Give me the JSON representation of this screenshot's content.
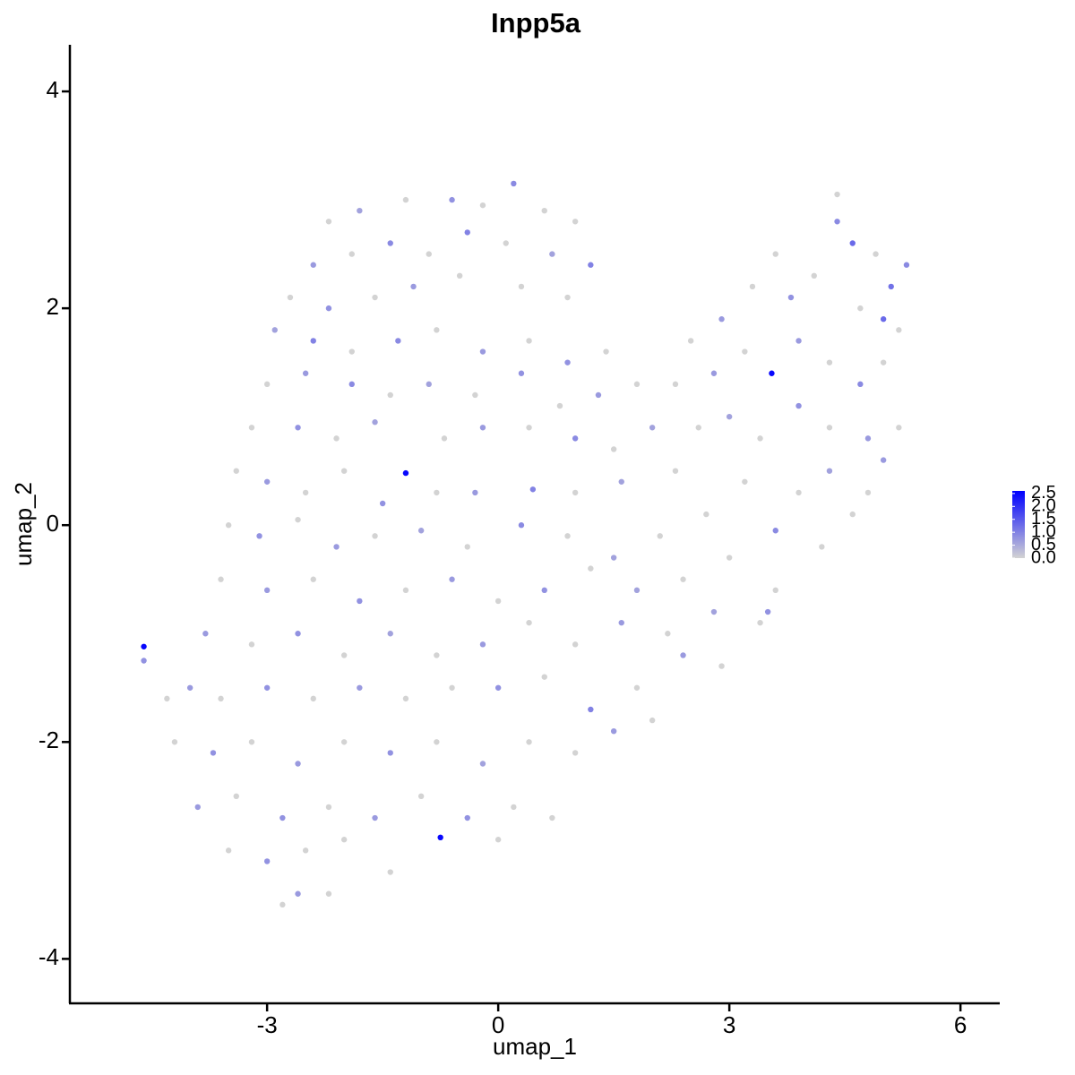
{
  "chart_data": {
    "type": "scatter",
    "title": "Inpp5a",
    "x_label": "umap_1",
    "y_label": "umap_2",
    "xlim": [
      -5.56,
      6.51
    ],
    "ylim": [
      -4.41,
      4.43
    ],
    "xticks": [
      -3,
      0,
      3,
      6
    ],
    "yticks": [
      -4,
      -2,
      0,
      2,
      4
    ],
    "colorbar": {
      "lim": [
        0,
        2.6
      ],
      "colors": [
        "#d3d3d3",
        "#0000ff"
      ],
      "ticks": [
        {
          "value": 0,
          "label": "0.0"
        },
        0.5,
        {
          "value": 1,
          "label": "1.0"
        },
        1.5,
        {
          "value": 2,
          "label": "2.0"
        },
        2.5
      ]
    },
    "x": [
      -2.2,
      -1.8,
      -1.2,
      -0.6,
      -0.2,
      0.2,
      0.6,
      1.0,
      -2.4,
      -1.9,
      -1.4,
      -0.9,
      -0.4,
      0.1,
      0.7,
      1.2,
      -2.7,
      -2.2,
      -1.6,
      -1.1,
      -0.5,
      0.3,
      0.9,
      -2.9,
      -2.4,
      -1.9,
      -1.3,
      -0.8,
      -0.2,
      0.4,
      0.9,
      1.4,
      -3.0,
      -2.5,
      -1.9,
      -1.4,
      -0.9,
      -0.3,
      0.3,
      0.8,
      1.3,
      1.8,
      -3.2,
      -2.6,
      -2.1,
      -1.6,
      -1.2,
      -0.7,
      -0.2,
      0.4,
      1.0,
      1.5,
      2.0,
      -3.4,
      -3.0,
      -2.5,
      -2.0,
      -1.5,
      -0.8,
      -0.3,
      0.45,
      1.0,
      1.6,
      2.3,
      -3.5,
      -3.1,
      -2.6,
      -2.1,
      -1.6,
      -1.0,
      -0.4,
      0.3,
      0.9,
      1.5,
      2.1,
      2.7,
      -3.6,
      -3.0,
      -2.4,
      -1.8,
      -1.2,
      -0.6,
      0.0,
      0.6,
      1.2,
      1.8,
      2.4,
      3.0,
      -3.8,
      -3.2,
      -2.6,
      -2.0,
      -1.4,
      -0.8,
      -0.2,
      0.4,
      1.0,
      1.6,
      2.2,
      2.8,
      3.4,
      -4.6,
      -4.6,
      -4.3,
      -4.0,
      -3.6,
      -3.0,
      -2.4,
      -1.8,
      -1.2,
      -0.6,
      0.0,
      0.6,
      1.2,
      1.8,
      2.4,
      2.9,
      -4.2,
      -3.7,
      -3.2,
      -2.6,
      -2.0,
      -1.4,
      -0.8,
      -0.2,
      0.4,
      1.0,
      1.5,
      2.0,
      -3.9,
      -3.4,
      -2.8,
      -2.2,
      -1.6,
      -1.0,
      -0.4,
      0.2,
      0.7,
      -3.5,
      -3.0,
      -2.5,
      -2.0,
      -1.4,
      -0.75,
      0.0,
      -2.6,
      -2.2,
      -2.8,
      2.5,
      2.9,
      3.3,
      3.6,
      3.8,
      4.1,
      4.4,
      4.6,
      4.9,
      5.1,
      5.3,
      4.4,
      4.7,
      5.0,
      5.2,
      2.3,
      2.8,
      3.2,
      3.55,
      3.9,
      4.3,
      4.7,
      5.0,
      2.6,
      3.0,
      3.4,
      3.9,
      4.3,
      4.8,
      5.2,
      3.2,
      3.6,
      3.9,
      4.3,
      4.8,
      5.0,
      3.6,
      3.5,
      4.2,
      4.6
    ],
    "y": [
      2.8,
      2.9,
      3.0,
      3.0,
      2.95,
      3.15,
      2.9,
      2.8,
      2.4,
      2.5,
      2.6,
      2.5,
      2.7,
      2.6,
      2.5,
      2.4,
      2.1,
      2.0,
      2.1,
      2.2,
      2.3,
      2.2,
      2.1,
      1.8,
      1.7,
      1.6,
      1.7,
      1.8,
      1.6,
      1.7,
      1.5,
      1.6,
      1.3,
      1.4,
      1.3,
      1.2,
      1.3,
      1.2,
      1.4,
      1.1,
      1.2,
      1.3,
      0.9,
      0.9,
      0.8,
      0.95,
      0.48,
      0.8,
      0.9,
      0.9,
      0.8,
      0.7,
      0.9,
      0.5,
      0.4,
      0.3,
      0.5,
      0.2,
      0.3,
      0.3,
      0.33,
      0.3,
      0.4,
      0.5,
      0,
      -0.1,
      0.05,
      -0.2,
      -0.1,
      -0.05,
      -0.2,
      0,
      -0.1,
      -0.3,
      -0.1,
      0.1,
      -0.5,
      -0.6,
      -0.5,
      -0.7,
      -0.6,
      -0.5,
      -0.7,
      -0.6,
      -0.4,
      -0.6,
      -0.5,
      -0.3,
      -1.0,
      -1.1,
      -1.0,
      -1.2,
      -1.0,
      -1.2,
      -1.1,
      -0.9,
      -1.1,
      -0.9,
      -1.0,
      -0.8,
      -0.9,
      -1.12,
      -1.25,
      -1.6,
      -1.5,
      -1.6,
      -1.5,
      -1.6,
      -1.5,
      -1.6,
      -1.5,
      -1.5,
      -1.4,
      -1.7,
      -1.5,
      -1.2,
      -1.3,
      -2.0,
      -2.1,
      -2.0,
      -2.2,
      -2.0,
      -2.1,
      -2.0,
      -2.2,
      -2.0,
      -2.1,
      -1.9,
      -1.8,
      -2.6,
      -2.5,
      -2.7,
      -2.6,
      -2.7,
      -2.5,
      -2.7,
      -2.6,
      -2.7,
      -3.0,
      -3.1,
      -3.0,
      -2.9,
      -3.2,
      -2.88,
      -2.9,
      -3.4,
      -3.4,
      -3.5,
      1.7,
      1.9,
      2.2,
      2.5,
      2.1,
      2.3,
      2.8,
      2.6,
      2.5,
      2.2,
      2.4,
      3.05,
      2.0,
      1.9,
      1.8,
      1.3,
      1.4,
      1.6,
      1.4,
      1.7,
      1.5,
      1.3,
      1.5,
      0.9,
      1.0,
      0.8,
      1.1,
      0.9,
      0.8,
      0.9,
      0.4,
      -0.05,
      0.3,
      0.5,
      0.3,
      0.6,
      -0.6,
      -0.8,
      -0.2,
      0.1
    ],
    "values": [
      0,
      0.6,
      0,
      0.8,
      0,
      0.9,
      0,
      0,
      0.7,
      0,
      0.9,
      0,
      1.0,
      0,
      0.6,
      1.0,
      0,
      0.8,
      0,
      0.7,
      0,
      0,
      0,
      0.6,
      1.0,
      0,
      0.9,
      0,
      0.7,
      0,
      0.8,
      0,
      0,
      0.7,
      0.9,
      0,
      0.6,
      0,
      0.8,
      0,
      0.7,
      0,
      0,
      0.8,
      0,
      0.6,
      2.5,
      0,
      0.7,
      0,
      0.9,
      0,
      0.6,
      0,
      0.7,
      0,
      0,
      0.8,
      0,
      0.7,
      1.0,
      0,
      0.6,
      0,
      0,
      0.8,
      0,
      0.7,
      0,
      0.6,
      0,
      0.9,
      0,
      0.6,
      0,
      0,
      0,
      0.7,
      0,
      0.8,
      0,
      0.7,
      0,
      0.8,
      0,
      0.6,
      0,
      0,
      0.7,
      0,
      0.8,
      0,
      0.6,
      0,
      0.7,
      0,
      0,
      0.7,
      0,
      0.6,
      0,
      2.5,
      0.8,
      0,
      0.7,
      0,
      0.8,
      0,
      0.7,
      0,
      0,
      0.8,
      0,
      1.0,
      0,
      0.7,
      0,
      0,
      0.8,
      0,
      0.7,
      0,
      0.8,
      0,
      0.6,
      0,
      0,
      0.7,
      0,
      0.7,
      0,
      0.8,
      0,
      0.7,
      0,
      0.8,
      0,
      0,
      0,
      0.8,
      0,
      0,
      0,
      2.5,
      0,
      0.7,
      0,
      0,
      0,
      0.7,
      0,
      0,
      0.8,
      0,
      0.9,
      1.3,
      0,
      1.2,
      0.9,
      0,
      0,
      1.3,
      0,
      0,
      0.7,
      0,
      2.5,
      0.7,
      0,
      0.9,
      0,
      0,
      0.6,
      0,
      0.8,
      0,
      0.7,
      0,
      0,
      0.9,
      0,
      0.6,
      0,
      0.7,
      0,
      0.8,
      0,
      0
    ]
  }
}
